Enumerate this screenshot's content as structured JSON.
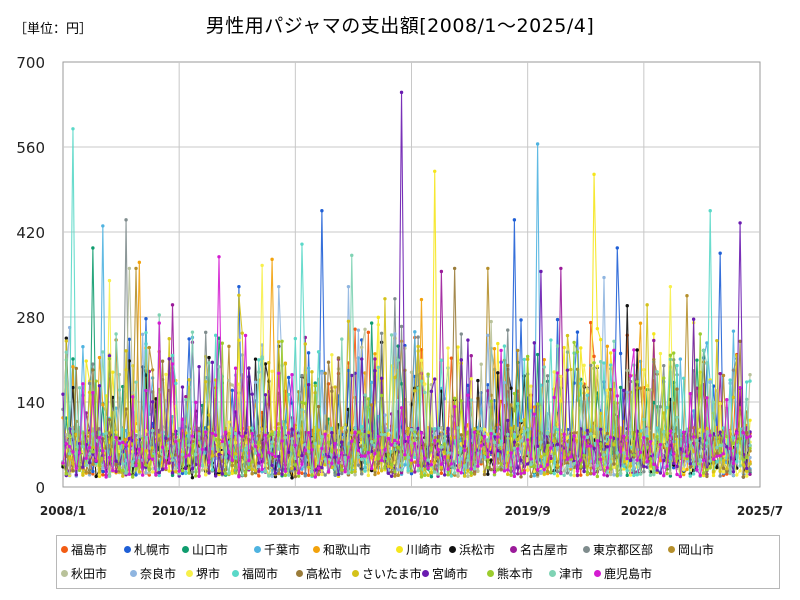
{
  "unit_label": "［単位：円］",
  "title": "男性用パジャマの支出額[2008/1～2025/4]",
  "chart_data": {
    "type": "line",
    "title": "男性用パジャマの支出額[2008/1～2025/4]",
    "unit": "円",
    "x_start": "2008/1",
    "x_end": "2025/7",
    "n_months": 208,
    "y_ticks": [
      0,
      140,
      280,
      420,
      560,
      700
    ],
    "ylim": [
      0,
      700
    ],
    "x_tick_labels": [
      "2008/1",
      "2010/12",
      "2013/11",
      "2016/10",
      "2019/9",
      "2022/8",
      "2025/7"
    ],
    "grid": true,
    "legend_position": "bottom",
    "series": [
      {
        "name": "福島市",
        "color": "#f25c14",
        "seed": 11,
        "base": 70,
        "spikes": [
          [
            88,
            260
          ],
          [
            170,
            250
          ]
        ]
      },
      {
        "name": "札幌市",
        "color": "#1f5fd6",
        "seed": 23,
        "base": 75,
        "spikes": [
          [
            53,
            330
          ],
          [
            78,
            455
          ],
          [
            136,
            440
          ],
          [
            198,
            385
          ]
        ]
      },
      {
        "name": "山口市",
        "color": "#0f9c6e",
        "seed": 37,
        "base": 65,
        "spikes": [
          [
            47,
            245
          ],
          [
            93,
            270
          ]
        ]
      },
      {
        "name": "千葉市",
        "color": "#4fb3e0",
        "seed": 41,
        "base": 70,
        "spikes": [
          [
            12,
            430
          ],
          [
            143,
            565
          ]
        ]
      },
      {
        "name": "和歌山市",
        "color": "#f2a20c",
        "seed": 53,
        "base": 75,
        "spikes": [
          [
            23,
            370
          ],
          [
            63,
            375
          ]
        ]
      },
      {
        "name": "川崎市",
        "color": "#f5e61c",
        "seed": 67,
        "base": 70,
        "spikes": [
          [
            112,
            520
          ],
          [
            160,
            515
          ]
        ]
      },
      {
        "name": "浜松市",
        "color": "#111111",
        "seed": 71,
        "base": 60,
        "spikes": [
          [
            1,
            245
          ],
          [
            193,
            225
          ]
        ]
      },
      {
        "name": "名古屋市",
        "color": "#9b1b9a",
        "seed": 83,
        "base": 70,
        "spikes": [
          [
            33,
            300
          ],
          [
            114,
            355
          ],
          [
            150,
            360
          ]
        ]
      },
      {
        "name": "東京都区部",
        "color": "#7f8c8d",
        "seed": 97,
        "base": 70,
        "spikes": [
          [
            19,
            440
          ],
          [
            100,
            310
          ]
        ]
      },
      {
        "name": "岡山市",
        "color": "#b58f2b",
        "seed": 101,
        "base": 70,
        "spikes": [
          [
            22,
            360
          ],
          [
            128,
            360
          ],
          [
            188,
            315
          ]
        ]
      },
      {
        "name": "秋田市",
        "color": "#b9c29a",
        "seed": 113,
        "base": 70,
        "spikes": [
          [
            20,
            360
          ],
          [
            90,
            230
          ]
        ]
      },
      {
        "name": "奈良市",
        "color": "#8fb5e0",
        "seed": 127,
        "base": 70,
        "spikes": [
          [
            65,
            330
          ],
          [
            86,
            330
          ],
          [
            163,
            345
          ]
        ]
      },
      {
        "name": "堺市",
        "color": "#f7f04a",
        "seed": 131,
        "base": 70,
        "spikes": [
          [
            14,
            340
          ],
          [
            60,
            365
          ],
          [
            183,
            330
          ]
        ]
      },
      {
        "name": "福岡市",
        "color": "#5ad8c8",
        "seed": 139,
        "base": 70,
        "spikes": [
          [
            3,
            590
          ],
          [
            72,
            400
          ],
          [
            195,
            455
          ]
        ]
      },
      {
        "name": "高松市",
        "color": "#9a7c3a",
        "seed": 149,
        "base": 65,
        "spikes": [
          [
            118,
            360
          ]
        ]
      },
      {
        "name": "さいたま市",
        "color": "#d4c21a",
        "seed": 157,
        "base": 70,
        "spikes": [
          [
            97,
            310
          ],
          [
            176,
            300
          ]
        ]
      },
      {
        "name": "宮崎市",
        "color": "#6a1bb0",
        "seed": 163,
        "base": 70,
        "spikes": [
          [
            102,
            650
          ],
          [
            144,
            355
          ],
          [
            204,
            435
          ]
        ]
      },
      {
        "name": "熊本市",
        "color": "#9ccc2e",
        "seed": 173,
        "base": 65,
        "spikes": [
          [
            66,
            240
          ],
          [
            140,
            215
          ]
        ]
      },
      {
        "name": "津市",
        "color": "#7fd3b4",
        "seed": 181,
        "base": 70,
        "spikes": [
          [
            39,
            255
          ],
          [
            166,
            240
          ]
        ]
      },
      {
        "name": "鹿児島市",
        "color": "#d41bd1",
        "seed": 191,
        "base": 65,
        "spikes": [
          [
            29,
            270
          ],
          [
            132,
            225
          ]
        ]
      }
    ]
  }
}
